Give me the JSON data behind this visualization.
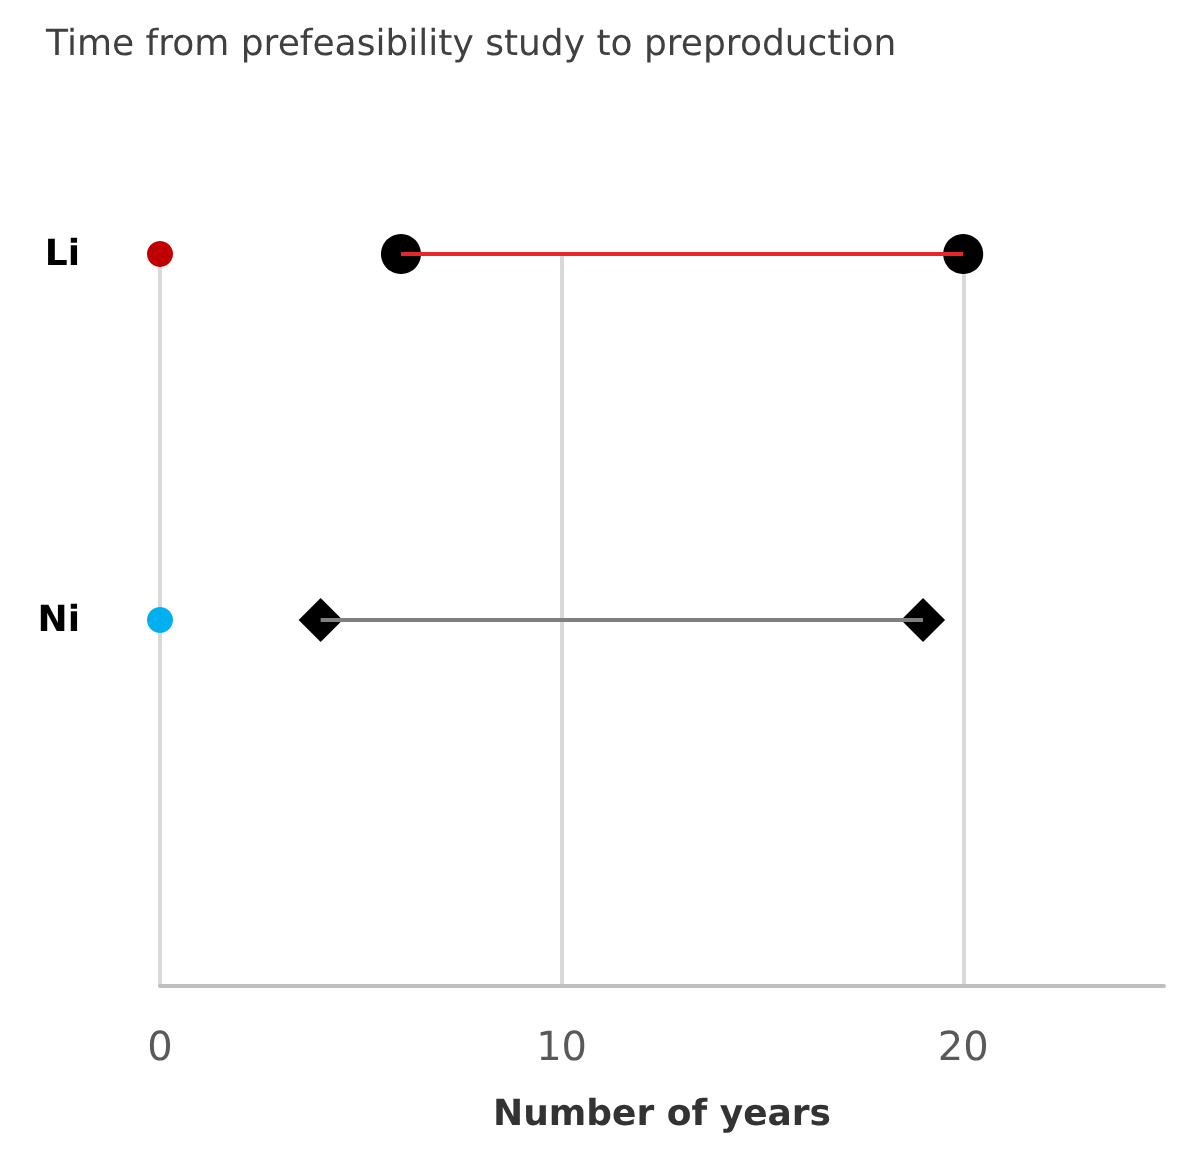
{
  "chart_data": {
    "type": "bar",
    "orientation": "horizontal",
    "title": "Time from prefeasibility study to preproduction",
    "xlabel": "Number of years",
    "categories": [
      "Li",
      "Ni",
      null
    ],
    "xlim": [
      0,
      25
    ],
    "xticks": [
      0,
      10,
      20
    ],
    "grid": "x",
    "series": [
      {
        "base": [
          6,
          4,
          null
        ],
        "values": [
          14,
          15,
          null
        ],
        "colors": [
          "#e8262a",
          "#7f7f7f",
          null
        ]
      },
      {
        "type": "scatter",
        "marker": "circle",
        "color": "#000000",
        "x": [
          "Li",
          "Li"
        ],
        "values": [
          6,
          20
        ]
      },
      {
        "type": "scatter",
        "marker": "diamond",
        "color": "#000000",
        "x": [
          "Ni",
          "Ni"
        ],
        "values": [
          4,
          19
        ]
      },
      {
        "type": "scatter",
        "marker": "circle",
        "x": [
          "Li",
          "Ni"
        ],
        "values": [
          0,
          0
        ],
        "colors": [
          "#c00000",
          "#00b0f0"
        ]
      }
    ]
  }
}
